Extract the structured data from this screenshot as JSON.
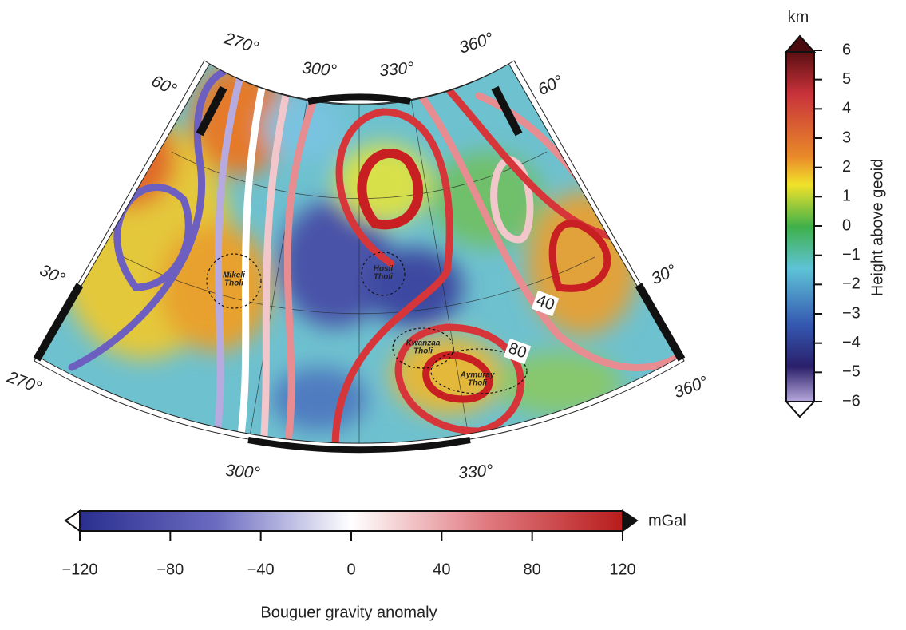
{
  "map": {
    "longitude_labels": {
      "top": [
        "270°",
        "300°",
        "330°",
        "360°"
      ],
      "bottom": [
        "270°",
        "300°",
        "330°",
        "360°"
      ]
    },
    "latitude_labels": {
      "left": [
        "60°",
        "30°"
      ],
      "right": [
        "60°",
        "30°"
      ]
    },
    "features": [
      {
        "lines": [
          "Mikeli",
          "Tholi"
        ]
      },
      {
        "lines": [
          "Hosil",
          "Tholi"
        ]
      },
      {
        "lines": [
          "Kwanzaa",
          "Tholi"
        ]
      },
      {
        "lines": [
          "Aymuray",
          "Tholi"
        ]
      }
    ],
    "contour_labels": [
      40,
      80
    ]
  },
  "height_colorbar": {
    "unit": "km",
    "label": "Height above geoid",
    "ticks": [
      6,
      5,
      4,
      3,
      2,
      1,
      0,
      {
        "value": -1,
        "label": "−1"
      },
      {
        "value": -2,
        "label": "−2"
      },
      {
        "value": -3,
        "label": "−3"
      },
      {
        "value": -4,
        "label": "−4"
      },
      {
        "value": -5,
        "label": "−5"
      },
      {
        "value": -6,
        "label": "−6"
      }
    ]
  },
  "gravity_colorbar": {
    "unit": "mGal",
    "label": "Bouguer gravity anomaly",
    "ticks": [
      {
        "value": -120,
        "label": "−120"
      },
      {
        "value": -80,
        "label": "−80"
      },
      {
        "value": -40,
        "label": "−40"
      },
      0,
      40,
      80,
      120
    ]
  }
}
